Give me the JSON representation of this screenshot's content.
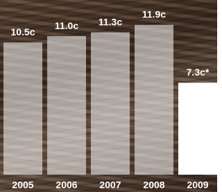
{
  "chart_data": {
    "type": "bar",
    "categories": [
      "2005",
      "2006",
      "2007",
      "2008",
      "2009"
    ],
    "values": [
      10.5,
      11.0,
      11.3,
      11.9,
      7.3
    ],
    "value_labels": [
      "10.5c",
      "11.0c",
      "11.3c",
      "11.9c",
      "7.3c*"
    ],
    "colors": [
      "rgba(255,255,255,0.55)",
      "rgba(255,255,255,0.55)",
      "rgba(255,255,255,0.55)",
      "rgba(255,255,255,0.55)",
      "#ffffff"
    ],
    "ylim": [
      0,
      12
    ]
  }
}
